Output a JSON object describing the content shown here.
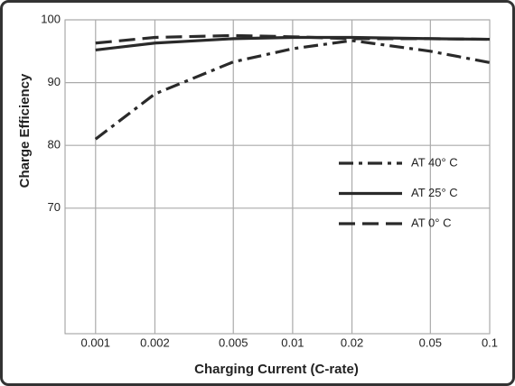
{
  "chart_data": {
    "type": "line",
    "xlabel": "Charging Current (C-rate)",
    "ylabel": "Charge Efficiency",
    "x": [
      0.001,
      0.002,
      0.005,
      0.01,
      0.02,
      0.05,
      0.1
    ],
    "xscale": "log",
    "xlim": [
      0.0007,
      0.1
    ],
    "xticks": [
      0.001,
      0.002,
      0.005,
      0.01,
      0.02,
      0.05,
      0.1
    ],
    "ylim": [
      50,
      100
    ],
    "yticks": [
      70,
      80,
      90,
      100
    ],
    "grid": true,
    "legend": "right",
    "series": [
      {
        "name": "AT 40° C",
        "color": "#2a2a2a",
        "style": "dashdot",
        "values": [
          81,
          88.2,
          93.3,
          95.4,
          96.7,
          95,
          93.2
        ]
      },
      {
        "name": "AT 25° C",
        "color": "#2a2a2a",
        "style": "solid",
        "values": [
          95.2,
          96.3,
          97,
          97.2,
          97.2,
          97,
          96.9
        ]
      },
      {
        "name": "AT 0° C",
        "color": "#2a2a2a",
        "style": "dashed",
        "values": [
          96.3,
          97.2,
          97.5,
          97.3,
          97,
          97,
          96.9
        ]
      }
    ]
  }
}
